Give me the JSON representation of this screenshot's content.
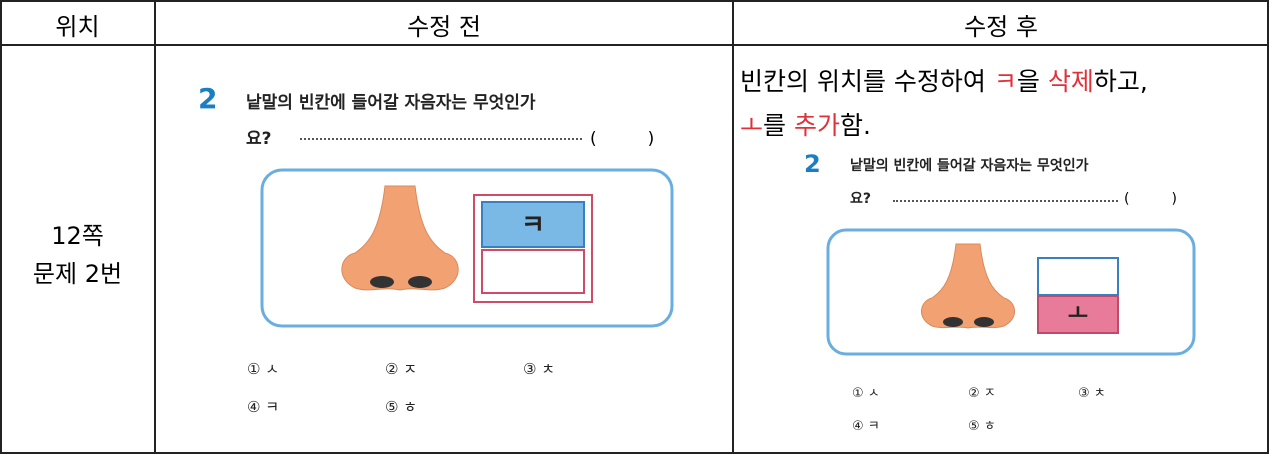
{
  "table": {
    "header": [
      "위치",
      "수정 전",
      "수정 후"
    ],
    "location": [
      "12쪽",
      "문제 2번"
    ],
    "before": {
      "number": "2",
      "question": [
        "낱말의 빈칸에 들어갈 자음자는 무엇인가",
        "요?"
      ],
      "blank": "(　　　)",
      "box_letter": "ㅋ",
      "options": [
        "① ㅅ",
        "② ㅈ",
        "③ ㅊ",
        "④ ㅋ",
        "⑤ ㅎ"
      ]
    },
    "after": {
      "explanation": [
        [
          {
            "text": "빈칸의 위치를 수정하여 ",
            "highlight": false
          },
          {
            "text": "ㅋ",
            "highlight": true
          },
          {
            "text": "을 ",
            "highlight": false
          },
          {
            "text": "삭제",
            "highlight": true
          },
          {
            "text": "하고,",
            "highlight": false
          }
        ],
        [
          {
            "text": "ㅗ",
            "highlight": true
          },
          {
            "text": "를 ",
            "highlight": false
          },
          {
            "text": "추가",
            "highlight": true
          },
          {
            "text": "함.",
            "highlight": false
          }
        ]
      ],
      "number": "2",
      "question": [
        "낱말의 빈칸에 들어갈 자음자는 무엇인가",
        "요?"
      ],
      "blank": "(　　　)",
      "box_letter": "ㅗ",
      "options": [
        "① ㅅ",
        "② ㅈ",
        "③ ㅊ",
        "④ ㅋ",
        "⑤ ㅎ"
      ]
    }
  }
}
